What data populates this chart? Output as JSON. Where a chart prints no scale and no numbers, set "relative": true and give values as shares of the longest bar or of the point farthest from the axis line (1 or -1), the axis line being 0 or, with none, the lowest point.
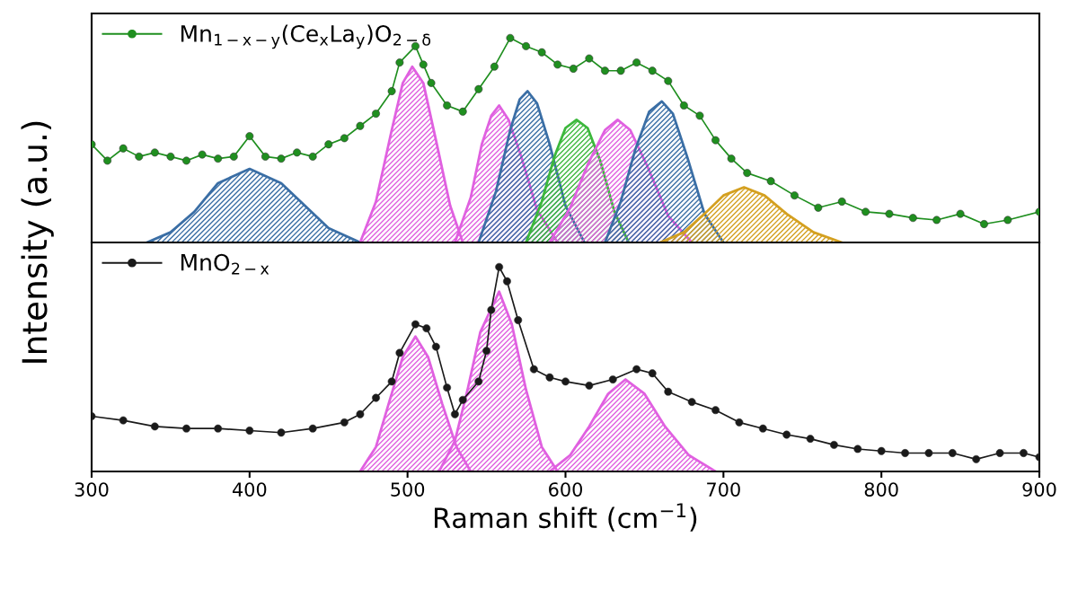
{
  "chart_data": [
    {
      "type": "line",
      "relative": true,
      "ylabel": "Intensity (a.u.)",
      "xlim": [
        300,
        900
      ],
      "tick_labels": false,
      "legend": "top left",
      "grid": false,
      "series": [
        {
          "name": "Mn$_{1−x−y}$(Ce$_{x}$La$_{y}$)O$_{2−δ}$",
          "color": "#1f8f1f",
          "marker": "circle",
          "x": [
            300,
            310,
            320,
            330,
            340,
            350,
            360,
            370,
            380,
            390,
            400,
            410,
            420,
            430,
            440,
            450,
            460,
            470,
            480,
            490,
            495,
            505,
            510,
            515,
            525,
            535,
            545,
            555,
            565,
            575,
            585,
            595,
            605,
            615,
            625,
            635,
            645,
            655,
            665,
            675,
            685,
            695,
            705,
            715,
            730,
            745,
            760,
            775,
            790,
            805,
            820,
            835,
            850,
            865,
            880,
            900
          ],
          "values": [
            0.48,
            0.4,
            0.46,
            0.42,
            0.44,
            0.42,
            0.4,
            0.43,
            0.41,
            0.42,
            0.52,
            0.42,
            0.41,
            0.44,
            0.42,
            0.48,
            0.51,
            0.57,
            0.63,
            0.74,
            0.88,
            0.96,
            0.87,
            0.78,
            0.67,
            0.64,
            0.75,
            0.86,
            1.0,
            0.96,
            0.93,
            0.87,
            0.85,
            0.9,
            0.84,
            0.84,
            0.88,
            0.84,
            0.79,
            0.67,
            0.62,
            0.5,
            0.41,
            0.34,
            0.3,
            0.23,
            0.17,
            0.2,
            0.15,
            0.14,
            0.12,
            0.11,
            0.14,
            0.09,
            0.11,
            0.15
          ]
        },
        {
          "color": "#3a6ea5",
          "type": "area",
          "x": [
            335,
            350,
            365,
            380,
            400,
            420,
            435,
            450,
            470
          ],
          "values": [
            0,
            0.05,
            0.15,
            0.29,
            0.36,
            0.29,
            0.18,
            0.07,
            0
          ]
        },
        {
          "color": "#e060e0",
          "type": "area",
          "x": [
            470,
            480,
            490,
            497,
            503,
            510,
            518,
            527,
            535
          ],
          "values": [
            0,
            0.2,
            0.55,
            0.78,
            0.86,
            0.78,
            0.5,
            0.18,
            0
          ]
        },
        {
          "color": "#e060e0",
          "type": "area",
          "x": [
            530,
            540,
            547,
            553,
            558,
            564,
            572,
            582,
            595
          ],
          "values": [
            0,
            0.22,
            0.48,
            0.62,
            0.67,
            0.6,
            0.42,
            0.16,
            0
          ]
        },
        {
          "color": "#3a6ea5",
          "type": "area",
          "x": [
            545,
            556,
            565,
            571,
            576,
            582,
            590,
            600,
            612
          ],
          "values": [
            0,
            0.25,
            0.55,
            0.7,
            0.74,
            0.68,
            0.48,
            0.18,
            0
          ]
        },
        {
          "color": "#3cb83c",
          "type": "area",
          "x": [
            575,
            585,
            593,
            600,
            607,
            614,
            622,
            631,
            640
          ],
          "values": [
            0,
            0.2,
            0.42,
            0.56,
            0.6,
            0.56,
            0.4,
            0.15,
            0
          ]
        },
        {
          "color": "#e060e0",
          "type": "area",
          "x": [
            590,
            603,
            614,
            625,
            633,
            641,
            652,
            665,
            680
          ],
          "values": [
            0,
            0.17,
            0.38,
            0.55,
            0.6,
            0.55,
            0.37,
            0.13,
            0
          ]
        },
        {
          "color": "#3a6ea5",
          "type": "area",
          "x": [
            625,
            635,
            644,
            653,
            661,
            668,
            677,
            688,
            700
          ],
          "values": [
            0,
            0.2,
            0.45,
            0.64,
            0.69,
            0.63,
            0.42,
            0.14,
            0
          ]
        },
        {
          "color": "#d4a020",
          "type": "area",
          "x": [
            660,
            675,
            688,
            700,
            713,
            726,
            740,
            757,
            775
          ],
          "values": [
            0,
            0.05,
            0.14,
            0.23,
            0.27,
            0.23,
            0.14,
            0.05,
            0
          ]
        }
      ]
    },
    {
      "type": "line",
      "relative": true,
      "xlabel": "Raman shift (cm$^{−1}$)",
      "xlim": [
        300,
        900
      ],
      "xticks": [
        300,
        400,
        500,
        600,
        700,
        800,
        900
      ],
      "tick_labels": "x",
      "legend": "top left",
      "grid": false,
      "series": [
        {
          "name": "MnO$_{2−x}$",
          "color": "#1a1a1a",
          "marker": "circle",
          "x": [
            300,
            320,
            340,
            360,
            380,
            400,
            420,
            440,
            460,
            470,
            480,
            490,
            495,
            505,
            512,
            518,
            525,
            530,
            535,
            545,
            550,
            553,
            558,
            563,
            570,
            580,
            590,
            600,
            615,
            630,
            645,
            655,
            665,
            680,
            695,
            710,
            725,
            740,
            755,
            770,
            785,
            800,
            815,
            830,
            845,
            860,
            875,
            890,
            900
          ],
          "values": [
            0.27,
            0.25,
            0.22,
            0.21,
            0.21,
            0.2,
            0.19,
            0.21,
            0.24,
            0.28,
            0.36,
            0.44,
            0.58,
            0.72,
            0.7,
            0.61,
            0.41,
            0.28,
            0.35,
            0.44,
            0.59,
            0.79,
            1.0,
            0.93,
            0.74,
            0.5,
            0.46,
            0.44,
            0.42,
            0.45,
            0.5,
            0.48,
            0.39,
            0.34,
            0.3,
            0.24,
            0.21,
            0.18,
            0.16,
            0.13,
            0.11,
            0.1,
            0.09,
            0.09,
            0.09,
            0.06,
            0.09,
            0.09,
            0.07
          ]
        },
        {
          "color": "#e060e0",
          "type": "area",
          "x": [
            470,
            480,
            488,
            497,
            505,
            513,
            522,
            531,
            540
          ],
          "values": [
            0,
            0.12,
            0.33,
            0.56,
            0.66,
            0.56,
            0.33,
            0.12,
            0
          ]
        },
        {
          "color": "#e060e0",
          "type": "area",
          "x": [
            520,
            530,
            538,
            546,
            558,
            566,
            575,
            585,
            595
          ],
          "values": [
            0,
            0.15,
            0.4,
            0.68,
            0.88,
            0.72,
            0.4,
            0.12,
            0
          ]
        },
        {
          "color": "#e060e0",
          "type": "area",
          "x": [
            590,
            603,
            615,
            627,
            638,
            650,
            663,
            678,
            695
          ],
          "values": [
            0,
            0.08,
            0.22,
            0.38,
            0.45,
            0.38,
            0.22,
            0.08,
            0
          ]
        }
      ]
    }
  ]
}
